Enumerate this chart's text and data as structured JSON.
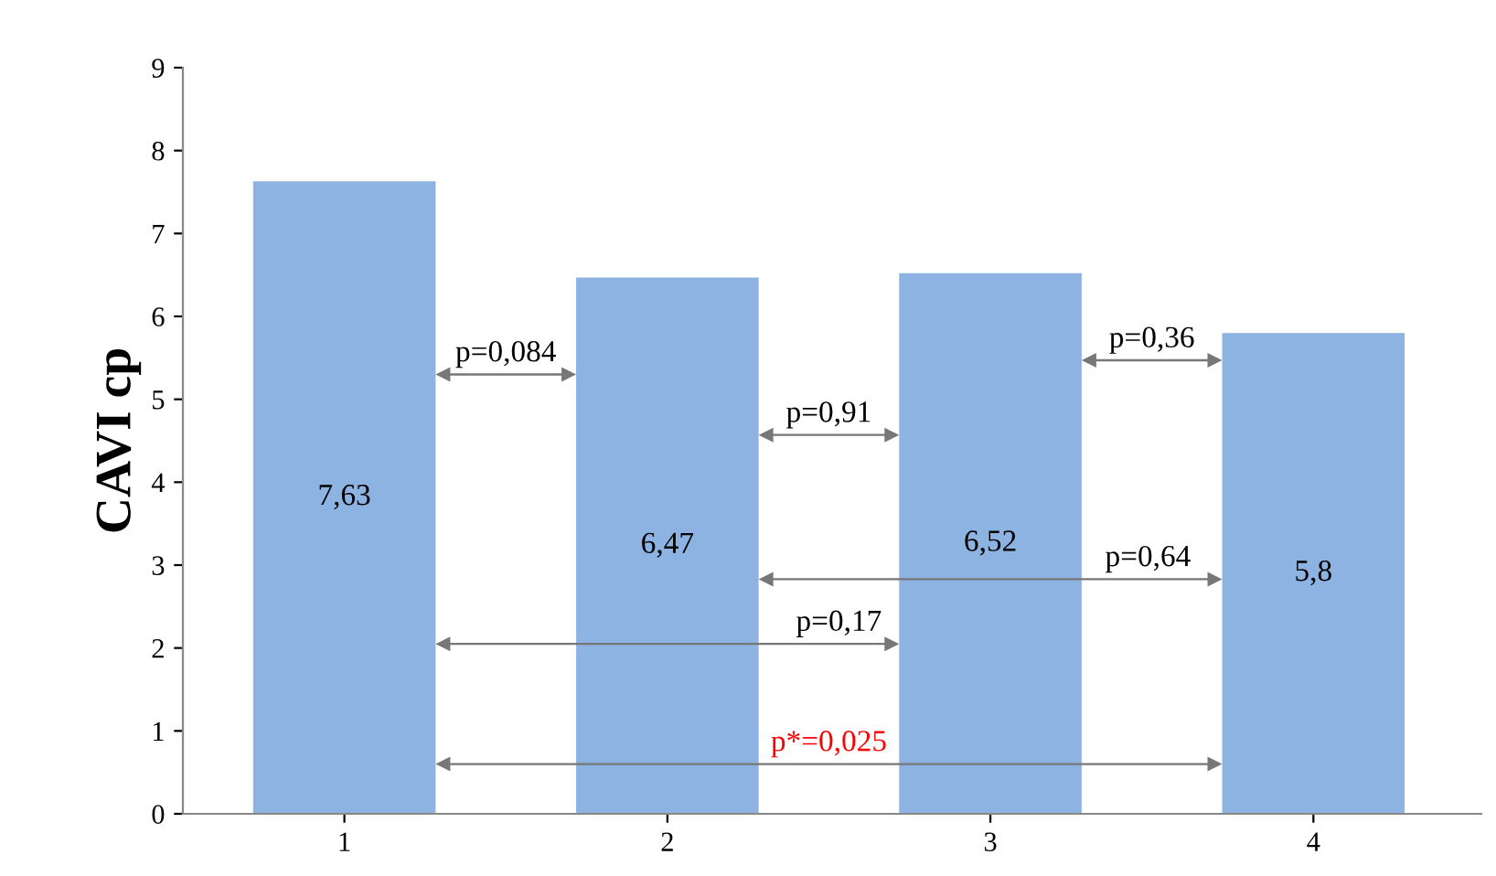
{
  "chart_data": {
    "type": "bar",
    "ylabel": "CAVI ср",
    "categories": [
      "1",
      "2",
      "3",
      "4"
    ],
    "values": [
      7.63,
      6.47,
      6.52,
      5.8
    ],
    "value_labels": [
      "7,63",
      "6,47",
      "6,52",
      "5,8"
    ],
    "color": "#8db3e2",
    "ylim": [
      0,
      9
    ],
    "yticks": [
      0,
      1,
      2,
      3,
      4,
      5,
      6,
      7,
      8,
      9
    ],
    "grid": false,
    "legend": false,
    "annotations": [
      "p=0,084",
      "p=0,91",
      "p=0,36",
      "p=0,64",
      "p=0,17",
      "p*=0,025"
    ]
  }
}
